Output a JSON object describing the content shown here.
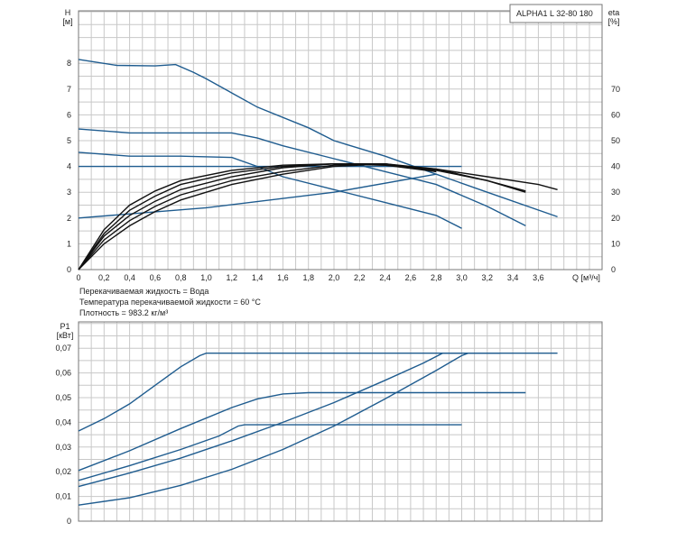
{
  "colors": {
    "blue": "#1f5c8f",
    "black": "#111111",
    "grid": "#c8c8c8"
  },
  "notes": [
    "Перекачиваемая жидкость = Вода",
    "Температура перекачиваемой жидкости = 60 °C",
    "Плотность = 983.2 кг/м³"
  ],
  "chart_data": [
    {
      "type": "line",
      "title": "",
      "legend_box": "ALPHA1 L 32-80  180",
      "ylabel_left": [
        "H",
        "[м]"
      ],
      "ylabel_right": [
        "eta",
        "[%]"
      ],
      "xlabel": "Q [м³/ч]",
      "xlim": [
        0,
        4.0
      ],
      "ylim": [
        0,
        9
      ],
      "ylim_right": [
        0,
        90
      ],
      "x_ticks": [
        "0",
        "0,2",
        "0,4",
        "0,6",
        "0,8",
        "1,0",
        "1,2",
        "1,4",
        "1,6",
        "1,8",
        "2,0",
        "2,2",
        "2,4",
        "2,6",
        "2,8",
        "3,0",
        "3,2",
        "3,4",
        "3,6"
      ],
      "x_tick_values": [
        0,
        0.2,
        0.4,
        0.6,
        0.8,
        1.0,
        1.2,
        1.4,
        1.6,
        1.8,
        2.0,
        2.2,
        2.4,
        2.6,
        2.8,
        3.0,
        3.2,
        3.4,
        3.6
      ],
      "y_ticks": [
        "0",
        "1",
        "2",
        "3",
        "4",
        "5",
        "6",
        "7",
        "8"
      ],
      "y_tick_values": [
        0,
        1,
        2,
        3,
        4,
        5,
        6,
        7,
        8
      ],
      "y_right_ticks": [
        "0",
        "10",
        "20",
        "30",
        "40",
        "50",
        "60",
        "70"
      ],
      "y_right_tick_values": [
        0,
        10,
        20,
        30,
        40,
        50,
        60,
        70
      ],
      "grid": true,
      "series": [
        {
          "color": "blue",
          "points": [
            [
              0,
              8.15
            ],
            [
              0.3,
              7.92
            ],
            [
              0.6,
              7.9
            ],
            [
              0.76,
              7.95
            ],
            [
              0.9,
              7.65
            ],
            [
              1.0,
              7.4
            ],
            [
              1.2,
              6.85
            ],
            [
              1.4,
              6.3
            ],
            [
              1.8,
              5.5
            ],
            [
              2.0,
              5.0
            ],
            [
              2.4,
              4.4
            ],
            [
              2.8,
              3.7
            ],
            [
              3.2,
              3.0
            ],
            [
              3.75,
              2.05
            ]
          ]
        },
        {
          "color": "blue",
          "points": [
            [
              0,
              5.45
            ],
            [
              0.4,
              5.3
            ],
            [
              0.8,
              5.3
            ],
            [
              1.2,
              5.3
            ],
            [
              1.4,
              5.1
            ],
            [
              1.6,
              4.8
            ],
            [
              2.0,
              4.3
            ],
            [
              2.4,
              3.8
            ],
            [
              2.8,
              3.3
            ],
            [
              3.2,
              2.45
            ],
            [
              3.5,
              1.7
            ]
          ]
        },
        {
          "color": "blue",
          "points": [
            [
              0,
              4.55
            ],
            [
              0.4,
              4.4
            ],
            [
              0.8,
              4.4
            ],
            [
              1.2,
              4.35
            ],
            [
              1.4,
              4.0
            ],
            [
              1.6,
              3.6
            ],
            [
              2.0,
              3.1
            ],
            [
              2.4,
              2.6
            ],
            [
              2.8,
              2.1
            ],
            [
              3.0,
              1.6
            ]
          ]
        },
        {
          "color": "blue",
          "points": [
            [
              0,
              4.0
            ],
            [
              3.0,
              4.0
            ]
          ]
        },
        {
          "color": "blue",
          "points": [
            [
              0,
              2.0
            ],
            [
              1.0,
              2.4
            ],
            [
              2.0,
              3.0
            ],
            [
              2.8,
              3.7
            ]
          ]
        },
        {
          "color": "black",
          "axis": "right",
          "points": [
            [
              0,
              0
            ],
            [
              0.2,
              10
            ],
            [
              0.4,
              17
            ],
            [
              0.6,
              22.5
            ],
            [
              0.8,
              27
            ],
            [
              1.2,
              33
            ],
            [
              1.6,
              37
            ],
            [
              2.0,
              40
            ],
            [
              2.4,
              41
            ],
            [
              2.8,
              39
            ],
            [
              3.2,
              34.5
            ],
            [
              3.5,
              30
            ]
          ]
        },
        {
          "color": "black",
          "axis": "right",
          "points": [
            [
              0,
              0
            ],
            [
              0.2,
              11.5
            ],
            [
              0.4,
              19
            ],
            [
              0.6,
              24.5
            ],
            [
              0.8,
              29
            ],
            [
              1.2,
              34.5
            ],
            [
              1.6,
              38
            ],
            [
              2.0,
              40.5
            ],
            [
              2.4,
              41
            ],
            [
              2.8,
              38.5
            ],
            [
              3.2,
              34.5
            ],
            [
              3.5,
              30.5
            ]
          ]
        },
        {
          "color": "black",
          "axis": "right",
          "points": [
            [
              0,
              0
            ],
            [
              0.2,
              13
            ],
            [
              0.4,
              21
            ],
            [
              0.6,
              26.5
            ],
            [
              0.8,
              31
            ],
            [
              1.2,
              36
            ],
            [
              1.6,
              39.5
            ],
            [
              2.0,
              41
            ],
            [
              2.4,
              41
            ],
            [
              2.8,
              38
            ]
          ]
        },
        {
          "color": "black",
          "axis": "right",
          "points": [
            [
              0,
              0
            ],
            [
              0.2,
              14
            ],
            [
              0.4,
              23
            ],
            [
              0.6,
              28.5
            ],
            [
              0.8,
              33
            ],
            [
              1.2,
              37.5
            ],
            [
              1.6,
              40
            ],
            [
              2.0,
              41
            ],
            [
              2.4,
              40.5
            ],
            [
              2.8,
              38
            ]
          ]
        },
        {
          "color": "black",
          "axis": "right",
          "points": [
            [
              0,
              0
            ],
            [
              0.2,
              15.5
            ],
            [
              0.4,
              25
            ],
            [
              0.6,
              30.5
            ],
            [
              0.8,
              34.5
            ],
            [
              1.2,
              38.5
            ],
            [
              1.6,
              40.5
            ],
            [
              2.0,
              41
            ],
            [
              2.4,
              40.5
            ],
            [
              2.8,
              39
            ],
            [
              3.2,
              36
            ],
            [
              3.6,
              33
            ],
            [
              3.75,
              31
            ]
          ]
        }
      ]
    },
    {
      "type": "line",
      "title": "",
      "ylabel_left": [
        "P1",
        "[кВт]"
      ],
      "xlim": [
        0,
        4.0
      ],
      "ylim": [
        0,
        0.08
      ],
      "y_ticks": [
        "0",
        "0,01",
        "0,02",
        "0,03",
        "0,04",
        "0,05",
        "0,06",
        "0,07"
      ],
      "y_tick_values": [
        0,
        0.01,
        0.02,
        0.03,
        0.04,
        0.05,
        0.06,
        0.07
      ],
      "grid": true,
      "series": [
        {
          "color": "blue",
          "points": [
            [
              0,
              0.0365
            ],
            [
              0.2,
              0.0415
            ],
            [
              0.4,
              0.0475
            ],
            [
              0.6,
              0.055
            ],
            [
              0.8,
              0.0625
            ],
            [
              0.95,
              0.067
            ],
            [
              1.0,
              0.068
            ],
            [
              1.5,
              0.068
            ],
            [
              2.5,
              0.068
            ],
            [
              3.75,
              0.068
            ]
          ]
        },
        {
          "color": "blue",
          "points": [
            [
              0,
              0.0205
            ],
            [
              0.4,
              0.0285
            ],
            [
              0.8,
              0.0375
            ],
            [
              1.2,
              0.046
            ],
            [
              1.4,
              0.0495
            ],
            [
              1.6,
              0.0515
            ],
            [
              1.8,
              0.052
            ],
            [
              2.5,
              0.052
            ],
            [
              3.5,
              0.052
            ]
          ]
        },
        {
          "color": "blue",
          "points": [
            [
              0,
              0.0165
            ],
            [
              0.4,
              0.0225
            ],
            [
              0.8,
              0.029
            ],
            [
              1.1,
              0.0345
            ],
            [
              1.25,
              0.0385
            ],
            [
              1.3,
              0.039
            ],
            [
              2.0,
              0.039
            ],
            [
              3.0,
              0.039
            ]
          ]
        },
        {
          "color": "blue",
          "points": [
            [
              0,
              0.014
            ],
            [
              0.4,
              0.0195
            ],
            [
              0.8,
              0.0255
            ],
            [
              1.2,
              0.0325
            ],
            [
              1.6,
              0.04
            ],
            [
              2.0,
              0.048
            ],
            [
              2.4,
              0.057
            ],
            [
              2.7,
              0.064
            ],
            [
              2.85,
              0.068
            ],
            [
              3.0,
              0.068
            ]
          ]
        },
        {
          "color": "blue",
          "points": [
            [
              0,
              0.0065
            ],
            [
              0.4,
              0.0095
            ],
            [
              0.8,
              0.0145
            ],
            [
              1.2,
              0.021
            ],
            [
              1.6,
              0.029
            ],
            [
              2.0,
              0.0385
            ],
            [
              2.4,
              0.0495
            ],
            [
              2.8,
              0.061
            ],
            [
              3.0,
              0.067
            ],
            [
              3.05,
              0.068
            ],
            [
              3.3,
              0.068
            ]
          ]
        }
      ]
    }
  ]
}
